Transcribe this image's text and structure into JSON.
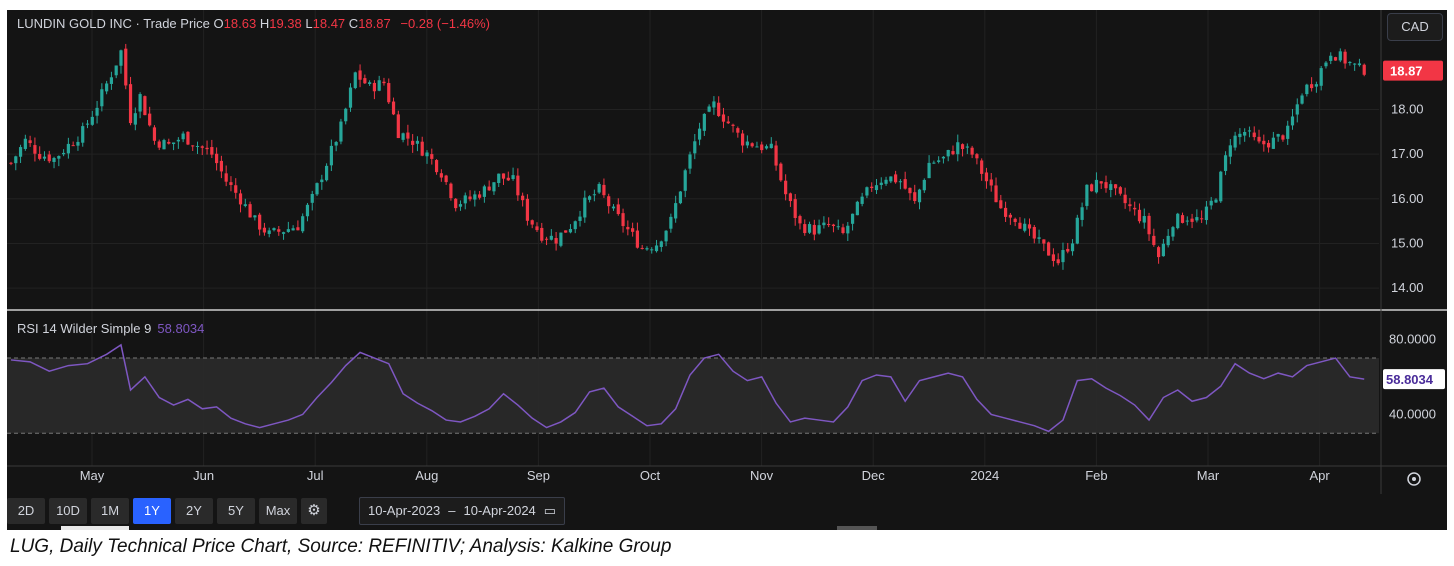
{
  "header": {
    "symbol": "LUNDIN GOLD INC",
    "separator": " · ",
    "source_label": "Trade Price",
    "open_label": "O",
    "open": "18.63",
    "high_label": "H",
    "high": "19.38",
    "low_label": "L",
    "low": "18.47",
    "close_label": "C",
    "close": "18.87",
    "change": "−0.28 (−1.46%)"
  },
  "currency": "CAD",
  "rsi_header": {
    "label": "RSI 14 Wilder Simple 9",
    "value": "58.8034"
  },
  "toolbar": {
    "ranges": [
      "2D",
      "10D",
      "1M",
      "1Y",
      "2Y",
      "5Y",
      "Max"
    ],
    "active_range": "1Y",
    "settings_icon": "gear-icon",
    "date_from": "10-Apr-2023",
    "date_sep": "–",
    "date_to": "10-Apr-2024",
    "calendar_icon": "calendar-icon"
  },
  "caption": "LUG, Daily Technical Price Chart, Source: REFINITIV; Analysis: Kalkine Group",
  "colors": {
    "background": "#141414",
    "up": "#26a69a",
    "down": "#f23645",
    "rsi_line": "#7e57c2",
    "last_price_tag": "#f23645",
    "rsi_tag": "#ffffff",
    "active_button": "#2962ff"
  },
  "chart_data": {
    "type": "candlestick",
    "x_axis": {
      "tick_labels": [
        "May",
        "Jun",
        "Jul",
        "Aug",
        "Sep",
        "Oct",
        "Nov",
        "Dec",
        "2024",
        "Feb",
        "Mar",
        "Apr"
      ],
      "range": [
        "10-Apr-2023",
        "10-Apr-2024"
      ]
    },
    "price_axis": {
      "ticks": [
        "18.00",
        "17.00",
        "16.00",
        "15.00",
        "14.00"
      ],
      "tick_values": [
        18,
        17,
        16,
        15,
        14
      ],
      "range": [
        13.6,
        19.6
      ],
      "last_price_label": "18.87",
      "last_price": 18.87
    },
    "price_series": [
      {
        "x": 0,
        "y": 16.8
      },
      {
        "x": 3,
        "y": 17.3
      },
      {
        "x": 6,
        "y": 17.0
      },
      {
        "x": 9,
        "y": 16.9
      },
      {
        "x": 12,
        "y": 17.2
      },
      {
        "x": 15,
        "y": 17.5
      },
      {
        "x": 18,
        "y": 18.1
      },
      {
        "x": 21,
        "y": 18.8
      },
      {
        "x": 23,
        "y": 19.3
      },
      {
        "x": 25,
        "y": 17.8
      },
      {
        "x": 27,
        "y": 18.3
      },
      {
        "x": 30,
        "y": 17.3
      },
      {
        "x": 33,
        "y": 17.2
      },
      {
        "x": 36,
        "y": 17.4
      },
      {
        "x": 39,
        "y": 17.2
      },
      {
        "x": 42,
        "y": 17.0
      },
      {
        "x": 45,
        "y": 16.4
      },
      {
        "x": 48,
        "y": 16.0
      },
      {
        "x": 51,
        "y": 15.5
      },
      {
        "x": 54,
        "y": 15.2
      },
      {
        "x": 57,
        "y": 15.3
      },
      {
        "x": 60,
        "y": 15.4
      },
      {
        "x": 63,
        "y": 16.0
      },
      {
        "x": 66,
        "y": 16.8
      },
      {
        "x": 69,
        "y": 17.6
      },
      {
        "x": 72,
        "y": 18.8
      },
      {
        "x": 75,
        "y": 18.5
      },
      {
        "x": 78,
        "y": 18.6
      },
      {
        "x": 81,
        "y": 17.5
      },
      {
        "x": 84,
        "y": 17.3
      },
      {
        "x": 87,
        "y": 17.0
      },
      {
        "x": 90,
        "y": 16.6
      },
      {
        "x": 93,
        "y": 15.9
      },
      {
        "x": 96,
        "y": 16.0
      },
      {
        "x": 99,
        "y": 16.2
      },
      {
        "x": 102,
        "y": 16.5
      },
      {
        "x": 105,
        "y": 16.4
      },
      {
        "x": 108,
        "y": 15.6
      },
      {
        "x": 111,
        "y": 15.2
      },
      {
        "x": 114,
        "y": 15.1
      },
      {
        "x": 117,
        "y": 15.4
      },
      {
        "x": 120,
        "y": 15.9
      },
      {
        "x": 123,
        "y": 16.2
      },
      {
        "x": 126,
        "y": 15.7
      },
      {
        "x": 129,
        "y": 15.3
      },
      {
        "x": 132,
        "y": 14.9
      },
      {
        "x": 135,
        "y": 15.0
      },
      {
        "x": 138,
        "y": 15.5
      },
      {
        "x": 141,
        "y": 16.6
      },
      {
        "x": 144,
        "y": 17.6
      },
      {
        "x": 147,
        "y": 18.1
      },
      {
        "x": 150,
        "y": 17.7
      },
      {
        "x": 153,
        "y": 17.3
      },
      {
        "x": 156,
        "y": 17.2
      },
      {
        "x": 159,
        "y": 17.1
      },
      {
        "x": 162,
        "y": 16.1
      },
      {
        "x": 165,
        "y": 15.4
      },
      {
        "x": 168,
        "y": 15.3
      },
      {
        "x": 171,
        "y": 15.4
      },
      {
        "x": 174,
        "y": 15.2
      },
      {
        "x": 177,
        "y": 15.8
      },
      {
        "x": 180,
        "y": 16.3
      },
      {
        "x": 183,
        "y": 16.5
      },
      {
        "x": 186,
        "y": 16.4
      },
      {
        "x": 189,
        "y": 15.9
      },
      {
        "x": 192,
        "y": 16.8
      },
      {
        "x": 195,
        "y": 16.9
      },
      {
        "x": 198,
        "y": 17.2
      },
      {
        "x": 201,
        "y": 17.0
      },
      {
        "x": 204,
        "y": 16.4
      },
      {
        "x": 207,
        "y": 15.8
      },
      {
        "x": 210,
        "y": 15.6
      },
      {
        "x": 213,
        "y": 15.2
      },
      {
        "x": 216,
        "y": 14.9
      },
      {
        "x": 219,
        "y": 14.6
      },
      {
        "x": 222,
        "y": 15.1
      },
      {
        "x": 225,
        "y": 16.2
      },
      {
        "x": 228,
        "y": 16.4
      },
      {
        "x": 231,
        "y": 16.1
      },
      {
        "x": 234,
        "y": 15.8
      },
      {
        "x": 237,
        "y": 15.5
      },
      {
        "x": 240,
        "y": 14.7
      },
      {
        "x": 243,
        "y": 15.5
      },
      {
        "x": 246,
        "y": 15.6
      },
      {
        "x": 249,
        "y": 15.5
      },
      {
        "x": 252,
        "y": 16.1
      },
      {
        "x": 255,
        "y": 17.3
      },
      {
        "x": 258,
        "y": 17.5
      },
      {
        "x": 261,
        "y": 17.2
      },
      {
        "x": 264,
        "y": 17.3
      },
      {
        "x": 267,
        "y": 17.5
      },
      {
        "x": 270,
        "y": 18.4
      },
      {
        "x": 273,
        "y": 18.7
      },
      {
        "x": 276,
        "y": 19.3
      },
      {
        "x": 279,
        "y": 19.1
      },
      {
        "x": 282,
        "y": 18.9
      }
    ],
    "price_range_days": 284,
    "rsi_axis": {
      "ticks": [
        "80.0000",
        "40.0000"
      ],
      "tick_values": [
        80,
        40
      ],
      "range": [
        20,
        86
      ],
      "band": [
        30,
        70
      ],
      "last_value_label": "58.8034",
      "last_value": 58.8034
    },
    "rsi_series": [
      {
        "x": 0,
        "y": 69
      },
      {
        "x": 4,
        "y": 68
      },
      {
        "x": 8,
        "y": 63
      },
      {
        "x": 12,
        "y": 66
      },
      {
        "x": 16,
        "y": 67
      },
      {
        "x": 20,
        "y": 72
      },
      {
        "x": 23,
        "y": 77
      },
      {
        "x": 25,
        "y": 53
      },
      {
        "x": 28,
        "y": 60
      },
      {
        "x": 31,
        "y": 49
      },
      {
        "x": 34,
        "y": 45
      },
      {
        "x": 37,
        "y": 48
      },
      {
        "x": 40,
        "y": 43
      },
      {
        "x": 43,
        "y": 44
      },
      {
        "x": 46,
        "y": 38
      },
      {
        "x": 49,
        "y": 35
      },
      {
        "x": 52,
        "y": 33
      },
      {
        "x": 55,
        "y": 35
      },
      {
        "x": 58,
        "y": 37
      },
      {
        "x": 61,
        "y": 40
      },
      {
        "x": 64,
        "y": 49
      },
      {
        "x": 67,
        "y": 57
      },
      {
        "x": 70,
        "y": 66
      },
      {
        "x": 73,
        "y": 73
      },
      {
        "x": 76,
        "y": 70
      },
      {
        "x": 79,
        "y": 67
      },
      {
        "x": 82,
        "y": 51
      },
      {
        "x": 85,
        "y": 46
      },
      {
        "x": 88,
        "y": 42
      },
      {
        "x": 91,
        "y": 37
      },
      {
        "x": 94,
        "y": 36
      },
      {
        "x": 97,
        "y": 39
      },
      {
        "x": 100,
        "y": 43
      },
      {
        "x": 103,
        "y": 51
      },
      {
        "x": 106,
        "y": 45
      },
      {
        "x": 109,
        "y": 38
      },
      {
        "x": 112,
        "y": 33
      },
      {
        "x": 115,
        "y": 36
      },
      {
        "x": 118,
        "y": 41
      },
      {
        "x": 121,
        "y": 52
      },
      {
        "x": 124,
        "y": 54
      },
      {
        "x": 127,
        "y": 44
      },
      {
        "x": 130,
        "y": 39
      },
      {
        "x": 133,
        "y": 34
      },
      {
        "x": 136,
        "y": 35
      },
      {
        "x": 139,
        "y": 43
      },
      {
        "x": 142,
        "y": 61
      },
      {
        "x": 145,
        "y": 70
      },
      {
        "x": 148,
        "y": 72
      },
      {
        "x": 151,
        "y": 63
      },
      {
        "x": 154,
        "y": 58
      },
      {
        "x": 157,
        "y": 60
      },
      {
        "x": 160,
        "y": 46
      },
      {
        "x": 163,
        "y": 36
      },
      {
        "x": 166,
        "y": 38
      },
      {
        "x": 169,
        "y": 37
      },
      {
        "x": 172,
        "y": 36
      },
      {
        "x": 175,
        "y": 44
      },
      {
        "x": 178,
        "y": 58
      },
      {
        "x": 181,
        "y": 61
      },
      {
        "x": 184,
        "y": 60
      },
      {
        "x": 187,
        "y": 47
      },
      {
        "x": 190,
        "y": 58
      },
      {
        "x": 193,
        "y": 60
      },
      {
        "x": 196,
        "y": 62
      },
      {
        "x": 199,
        "y": 60
      },
      {
        "x": 202,
        "y": 48
      },
      {
        "x": 205,
        "y": 40
      },
      {
        "x": 208,
        "y": 38
      },
      {
        "x": 211,
        "y": 36
      },
      {
        "x": 214,
        "y": 34
      },
      {
        "x": 217,
        "y": 31
      },
      {
        "x": 220,
        "y": 37
      },
      {
        "x": 223,
        "y": 58
      },
      {
        "x": 226,
        "y": 59
      },
      {
        "x": 229,
        "y": 54
      },
      {
        "x": 232,
        "y": 50
      },
      {
        "x": 235,
        "y": 45
      },
      {
        "x": 238,
        "y": 37
      },
      {
        "x": 241,
        "y": 49
      },
      {
        "x": 244,
        "y": 53
      },
      {
        "x": 247,
        "y": 47
      },
      {
        "x": 250,
        "y": 49
      },
      {
        "x": 253,
        "y": 55
      },
      {
        "x": 256,
        "y": 67
      },
      {
        "x": 259,
        "y": 62
      },
      {
        "x": 262,
        "y": 59
      },
      {
        "x": 265,
        "y": 62
      },
      {
        "x": 268,
        "y": 60
      },
      {
        "x": 271,
        "y": 66
      },
      {
        "x": 274,
        "y": 68
      },
      {
        "x": 277,
        "y": 70
      },
      {
        "x": 280,
        "y": 60
      },
      {
        "x": 283,
        "y": 58.8
      }
    ]
  }
}
